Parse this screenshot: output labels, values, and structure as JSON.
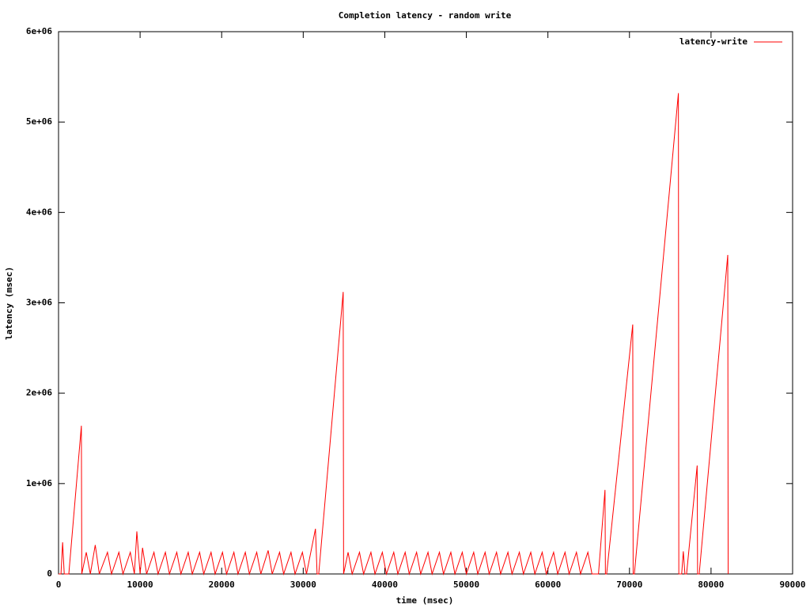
{
  "chart_data": {
    "type": "line",
    "title": "Completion latency - random write",
    "x_label": "time (msec)",
    "y_label": "latency (msec)",
    "xlim": [
      0,
      90000
    ],
    "xticks": [
      0,
      10000,
      20000,
      30000,
      40000,
      50000,
      60000,
      70000,
      80000,
      90000
    ],
    "ylim": [
      0,
      6000000
    ],
    "yticks": [
      0,
      {
        "value": 1000000,
        "label": "1e+06"
      },
      {
        "value": 2000000,
        "label": "2e+06"
      },
      {
        "value": 3000000,
        "label": "3e+06"
      },
      {
        "value": 4000000,
        "label": "4e+06"
      },
      {
        "value": 5000000,
        "label": "5e+06"
      },
      {
        "value": 6000000,
        "label": "6e+06"
      }
    ],
    "legend": "top-right",
    "x": [
      0,
      300,
      500,
      700,
      1260,
      2800,
      2850,
      3400,
      3900,
      4500,
      5000,
      6000,
      6500,
      7400,
      7900,
      8800,
      9300,
      9600,
      10000,
      10300,
      10800,
      11700,
      12200,
      13100,
      13600,
      14500,
      15000,
      15900,
      16400,
      17300,
      17800,
      18700,
      19200,
      20100,
      20600,
      21500,
      22000,
      22900,
      23400,
      24300,
      24800,
      25700,
      26200,
      27100,
      27600,
      28500,
      29000,
      29900,
      30400,
      31500,
      31700,
      31900,
      34900,
      34950,
      35500,
      36000,
      36900,
      37400,
      38300,
      38800,
      39700,
      40200,
      41100,
      41600,
      42500,
      43000,
      43900,
      44400,
      45300,
      45800,
      46700,
      47200,
      48100,
      48600,
      49500,
      50000,
      50900,
      51400,
      52300,
      52800,
      53700,
      54200,
      55100,
      55600,
      56500,
      57000,
      57900,
      58400,
      59300,
      59800,
      60700,
      61200,
      62100,
      62600,
      63500,
      64000,
      64900,
      65400,
      66200,
      67000,
      67050,
      67200,
      70400,
      70450,
      70600,
      76000,
      76050,
      76400,
      76600,
      76800,
      77000,
      78300,
      78350,
      78550,
      82050,
      82100
    ],
    "series": [
      {
        "name": "latency-write",
        "color": "#ff0000",
        "values": [
          0,
          0,
          350000,
          0,
          0,
          1640000,
          0,
          240000,
          0,
          320000,
          0,
          240000,
          0,
          240000,
          0,
          240000,
          0,
          470000,
          0,
          290000,
          0,
          240000,
          0,
          240000,
          0,
          240000,
          0,
          240000,
          0,
          240000,
          0,
          240000,
          0,
          240000,
          0,
          240000,
          0,
          240000,
          0,
          240000,
          0,
          260000,
          0,
          240000,
          0,
          240000,
          0,
          240000,
          0,
          500000,
          0,
          0,
          3120000,
          0,
          240000,
          0,
          240000,
          0,
          240000,
          0,
          240000,
          0,
          240000,
          0,
          240000,
          0,
          240000,
          0,
          240000,
          0,
          240000,
          0,
          240000,
          0,
          240000,
          0,
          240000,
          0,
          240000,
          0,
          240000,
          0,
          240000,
          0,
          240000,
          0,
          240000,
          0,
          240000,
          0,
          240000,
          0,
          240000,
          0,
          240000,
          0,
          240000,
          0,
          0,
          930000,
          0,
          0,
          2760000,
          0,
          0,
          5320000,
          0,
          0,
          250000,
          0,
          0,
          1200000,
          0,
          0,
          3530000,
          0
        ]
      }
    ]
  }
}
